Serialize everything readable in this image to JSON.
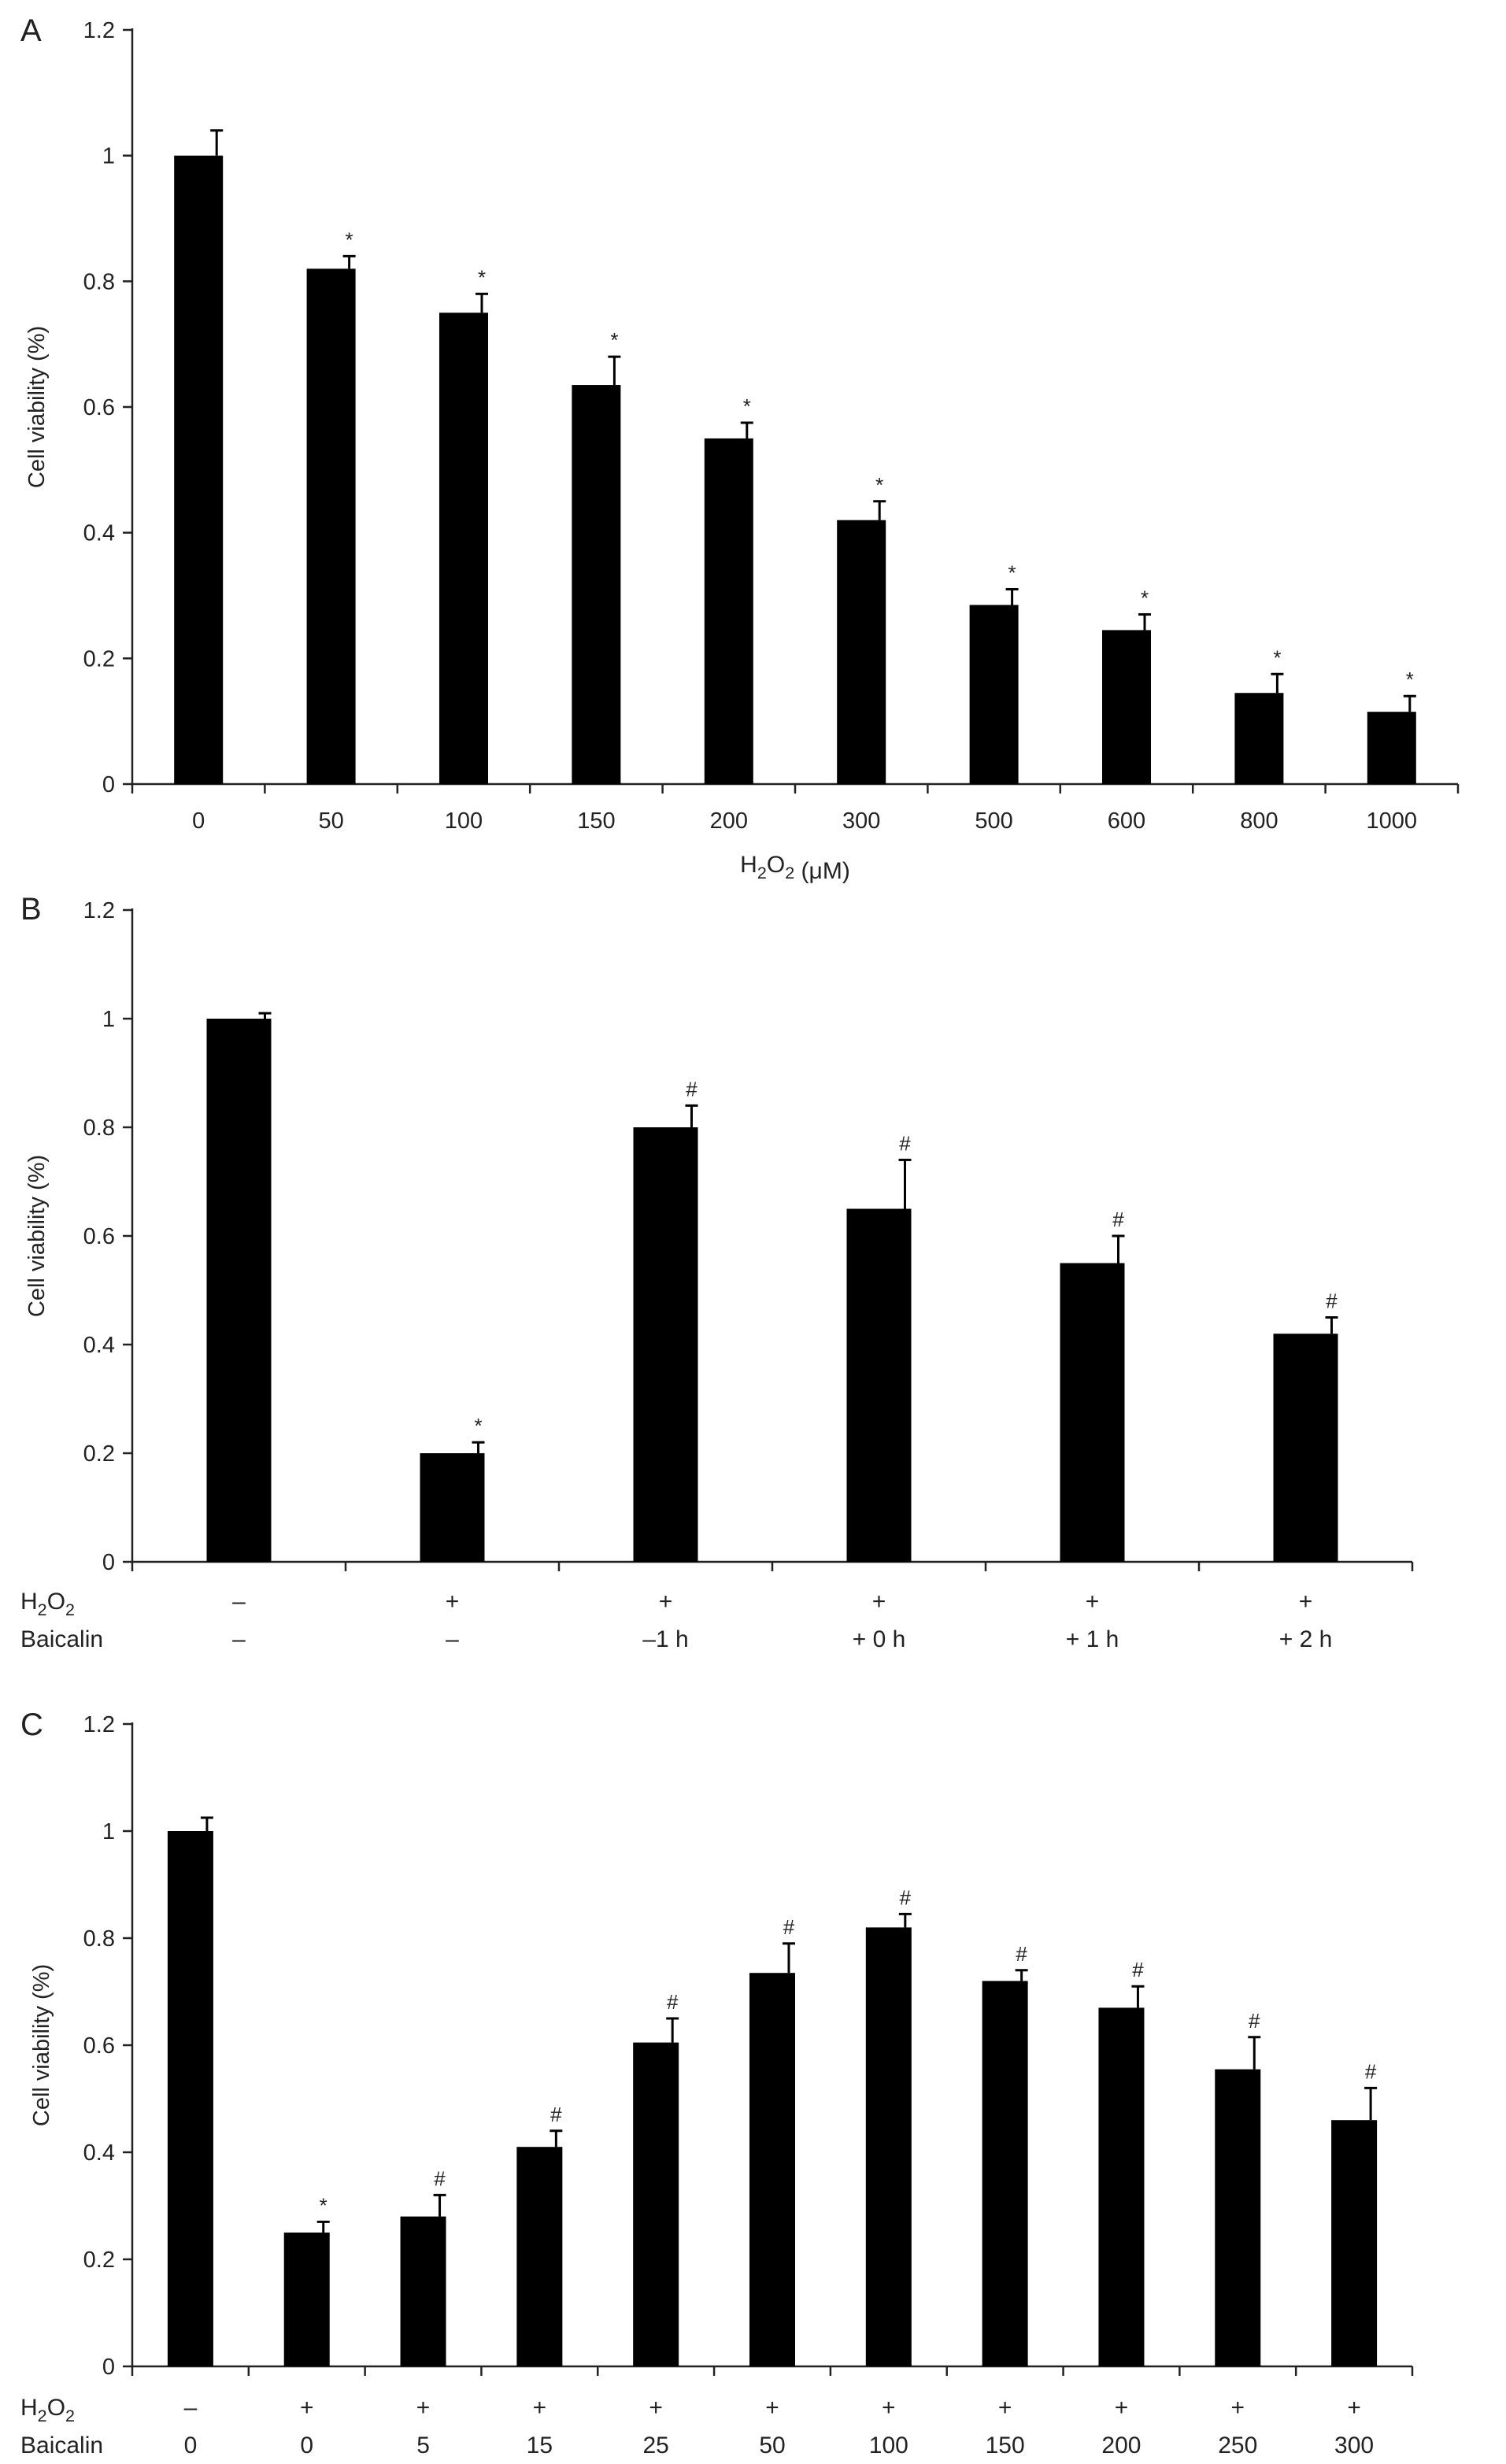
{
  "chart_data": [
    {
      "panel_label": "A",
      "type": "bar",
      "ylabel": "Cell viability (%)",
      "xlabel": "H2O2 (μM)",
      "ylim": [
        0,
        1.2
      ],
      "yticks": [
        "0",
        "0.2",
        "0.4",
        "0.6",
        "0.8",
        "1",
        "1.2"
      ],
      "categories": [
        "0",
        "50",
        "100",
        "150",
        "200",
        "300",
        "500",
        "600",
        "800",
        "1000"
      ],
      "values": [
        1.0,
        0.82,
        0.75,
        0.635,
        0.55,
        0.42,
        0.285,
        0.245,
        0.145,
        0.115
      ],
      "errors": [
        0.04,
        0.02,
        0.03,
        0.045,
        0.025,
        0.03,
        0.025,
        0.025,
        0.03,
        0.025
      ],
      "significance": [
        "",
        "*",
        "*",
        "*",
        "*",
        "*",
        "*",
        "*",
        "*",
        "*"
      ]
    },
    {
      "panel_label": "B",
      "type": "bar",
      "ylabel": "Cell viability (%)",
      "ylim": [
        0,
        1.2
      ],
      "yticks": [
        "0",
        "0.2",
        "0.4",
        "0.6",
        "0.8",
        "1",
        "1.2"
      ],
      "row_labels": [
        "H2O2",
        "Baicalin"
      ],
      "rows": [
        [
          "–",
          "+",
          "+",
          "+",
          "+",
          "+"
        ],
        [
          "–",
          "–",
          "–1 h",
          "+ 0 h",
          "+ 1 h",
          "+ 2 h"
        ]
      ],
      "values": [
        1.0,
        0.2,
        0.8,
        0.65,
        0.55,
        0.42
      ],
      "errors": [
        0.01,
        0.02,
        0.04,
        0.09,
        0.05,
        0.03
      ],
      "significance": [
        "",
        "*",
        "#",
        "#",
        "#",
        "#"
      ]
    },
    {
      "panel_label": "C",
      "type": "bar",
      "ylabel": "Cell viability (%)",
      "ylim": [
        0,
        1.2
      ],
      "yticks": [
        "0",
        "0.2",
        "0.4",
        "0.6",
        "0.8",
        "1",
        "1.2"
      ],
      "row_labels": [
        "H2O2",
        "Baicalin"
      ],
      "rows": [
        [
          "–",
          "+",
          "+",
          "+",
          "+",
          "+",
          "+",
          "+",
          "+",
          "+",
          "+"
        ],
        [
          "0",
          "0",
          "5",
          "15",
          "25",
          "50",
          "100",
          "150",
          "200",
          "250",
          "300"
        ]
      ],
      "values": [
        1.0,
        0.25,
        0.28,
        0.41,
        0.605,
        0.735,
        0.82,
        0.72,
        0.67,
        0.555,
        0.46
      ],
      "errors": [
        0.025,
        0.02,
        0.04,
        0.03,
        0.045,
        0.055,
        0.025,
        0.02,
        0.04,
        0.06,
        0.06
      ],
      "significance": [
        "",
        "*",
        "#",
        "#",
        "#",
        "#",
        "#",
        "#",
        "#",
        "#",
        "#"
      ]
    }
  ]
}
